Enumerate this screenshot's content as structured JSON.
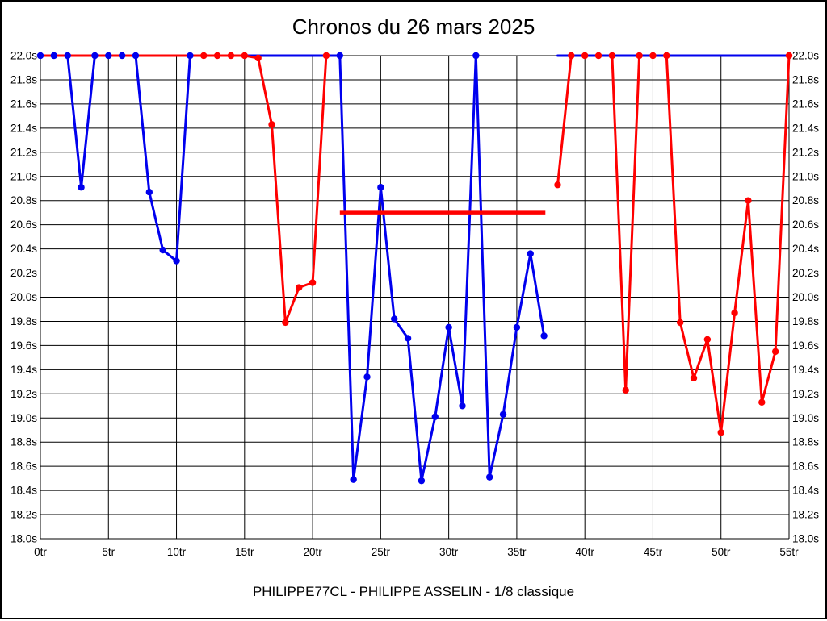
{
  "title": "Chronos du 26 mars 2025",
  "caption": "PHILIPPE77CL - PHILIPPE ASSELIN - 1/8 classique",
  "colors": {
    "blue_series": "#0000ee",
    "red_series": "#ff0000",
    "grid": "#000000",
    "background": "#ffffff"
  },
  "chart_data": {
    "type": "line",
    "title": "Chronos du 26 mars 2025",
    "xlabel": "",
    "ylabel": "",
    "x_unit": "tr",
    "y_unit": "s",
    "xlim": [
      0,
      55
    ],
    "ylim": [
      18.0,
      22.0
    ],
    "y_tick_step": 0.2,
    "grid": true,
    "legend": "none",
    "clip_level": 22.0,
    "x_ticks": [
      0,
      5,
      10,
      15,
      20,
      25,
      30,
      35,
      40,
      45,
      50,
      55
    ],
    "x_tick_labels": [
      "0tr",
      "5tr",
      "10tr",
      "15tr",
      "20tr",
      "25tr",
      "30tr",
      "35tr",
      "40tr",
      "45tr",
      "50tr",
      "55tr"
    ],
    "y_tick_labels": [
      "18.0s",
      "18.2s",
      "18.4s",
      "18.6s",
      "18.8s",
      "19.0s",
      "19.2s",
      "19.4s",
      "19.6s",
      "19.8s",
      "20.0s",
      "20.2s",
      "20.4s",
      "20.6s",
      "20.8s",
      "21.0s",
      "21.2s",
      "21.4s",
      "21.6s",
      "21.8s",
      "22.0s"
    ],
    "series": [
      {
        "name": "serie-bleue",
        "color": "#0000ee",
        "point_format": "[lap, seconds, marker]",
        "segments": [
          [
            [
              0,
              22.0,
              1
            ],
            [
              1,
              22.0,
              1
            ],
            [
              2,
              22.0,
              1
            ],
            [
              3,
              20.91,
              1
            ],
            [
              4,
              22.0,
              1
            ],
            [
              5,
              22.0,
              1
            ],
            [
              6,
              22.0,
              1
            ],
            [
              7,
              22.0,
              1
            ],
            [
              8,
              20.87,
              1
            ],
            [
              9,
              20.39,
              1
            ],
            [
              10,
              20.3,
              1
            ],
            [
              11,
              22.0,
              1
            ],
            [
              22,
              22.0,
              1
            ],
            [
              23,
              18.49,
              1
            ],
            [
              24,
              19.34,
              1
            ],
            [
              25,
              20.91,
              1
            ],
            [
              26,
              19.82,
              1
            ],
            [
              27,
              19.66,
              1
            ],
            [
              28,
              18.48,
              1
            ],
            [
              29,
              19.01,
              1
            ],
            [
              30,
              19.75,
              1
            ],
            [
              31,
              19.1,
              1
            ],
            [
              32,
              22.0,
              1
            ],
            [
              33,
              18.51,
              1
            ],
            [
              34,
              19.03,
              1
            ],
            [
              35,
              19.75,
              1
            ],
            [
              36,
              20.36,
              1
            ],
            [
              37,
              19.68,
              1
            ]
          ],
          [
            [
              38,
              22.0,
              0
            ],
            [
              55,
              22.0,
              0
            ]
          ]
        ]
      },
      {
        "name": "serie-rouge",
        "color": "#ff0000",
        "point_format": "[lap, seconds, marker]",
        "segments": [
          [
            [
              0,
              22.0,
              0
            ],
            [
              12,
              22.0,
              1
            ],
            [
              13,
              22.0,
              1
            ],
            [
              14,
              22.0,
              1
            ],
            [
              15,
              22.0,
              1
            ],
            [
              16,
              21.98,
              1
            ],
            [
              17,
              21.43,
              1
            ],
            [
              18,
              19.79,
              1
            ],
            [
              19,
              20.08,
              1
            ],
            [
              20,
              20.12,
              1
            ],
            [
              21,
              22.0,
              1
            ]
          ],
          [
            [
              38,
              20.93,
              1
            ],
            [
              39,
              22.0,
              1
            ],
            [
              40,
              22.0,
              1
            ],
            [
              41,
              22.0,
              1
            ],
            [
              42,
              22.0,
              1
            ],
            [
              43,
              19.23,
              1
            ],
            [
              44,
              22.0,
              1
            ],
            [
              45,
              22.0,
              1
            ],
            [
              46,
              22.0,
              1
            ],
            [
              47,
              19.79,
              1
            ],
            [
              48,
              19.33,
              1
            ],
            [
              49,
              19.65,
              1
            ],
            [
              50,
              18.88,
              1
            ],
            [
              51,
              19.87,
              1
            ],
            [
              52,
              20.8,
              1
            ],
            [
              53,
              19.13,
              1
            ],
            [
              54,
              19.55,
              1
            ],
            [
              55,
              22.0,
              1
            ]
          ]
        ]
      }
    ],
    "annotations": [
      {
        "type": "hline",
        "y": 20.7,
        "x_start": 22.0,
        "x_end": 37.1,
        "color": "#ff0000"
      }
    ]
  }
}
